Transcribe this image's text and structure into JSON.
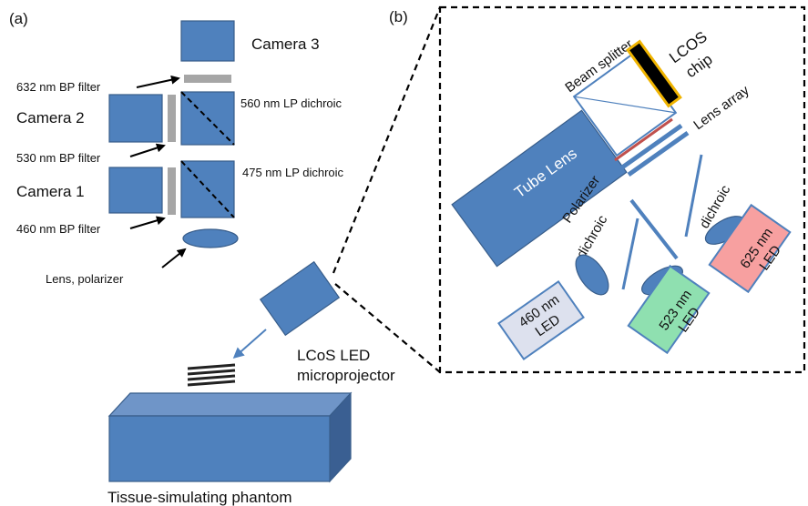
{
  "panels": {
    "a": "(a)",
    "b": "(b)"
  },
  "panel_a": {
    "camera3": "Camera 3",
    "camera2": "Camera 2",
    "camera1": "Camera 1",
    "filter632": "632 nm BP filter",
    "filter530": "530 nm BP filter",
    "filter460": "460 nm BP filter",
    "dichroic560": "560 nm LP dichroic",
    "dichroic475": "475 nm LP dichroic",
    "lens_polarizer": "Lens, polarizer",
    "projector_line1": "LCoS LED",
    "projector_line2": "microprojector",
    "phantom": "Tissue-simulating phantom"
  },
  "panel_b": {
    "beam_splitter": "Beam splitter",
    "lcos_line1": "LCOS",
    "lcos_line2": "chip",
    "lens_array": "Lens array",
    "tube_lens": "Tube Lens",
    "polarizer": "Polarizer",
    "dichroic_left": "dichroic",
    "dichroic_right": "dichroic",
    "led460_line1": "460 nm",
    "led460_line2": "LED",
    "led523_line1": "523 nm",
    "led523_line2": "LED",
    "led625_line1": "625 nm",
    "led625_line2": "LED"
  },
  "colors": {
    "component_blue": "#4f81bd",
    "filter_gray": "#a6a6a6",
    "lcos_gold": "#f0b400",
    "led460_fill": "#dde1ee",
    "led523_fill": "#8fe0b0",
    "led625_fill": "#f7a0a0"
  }
}
